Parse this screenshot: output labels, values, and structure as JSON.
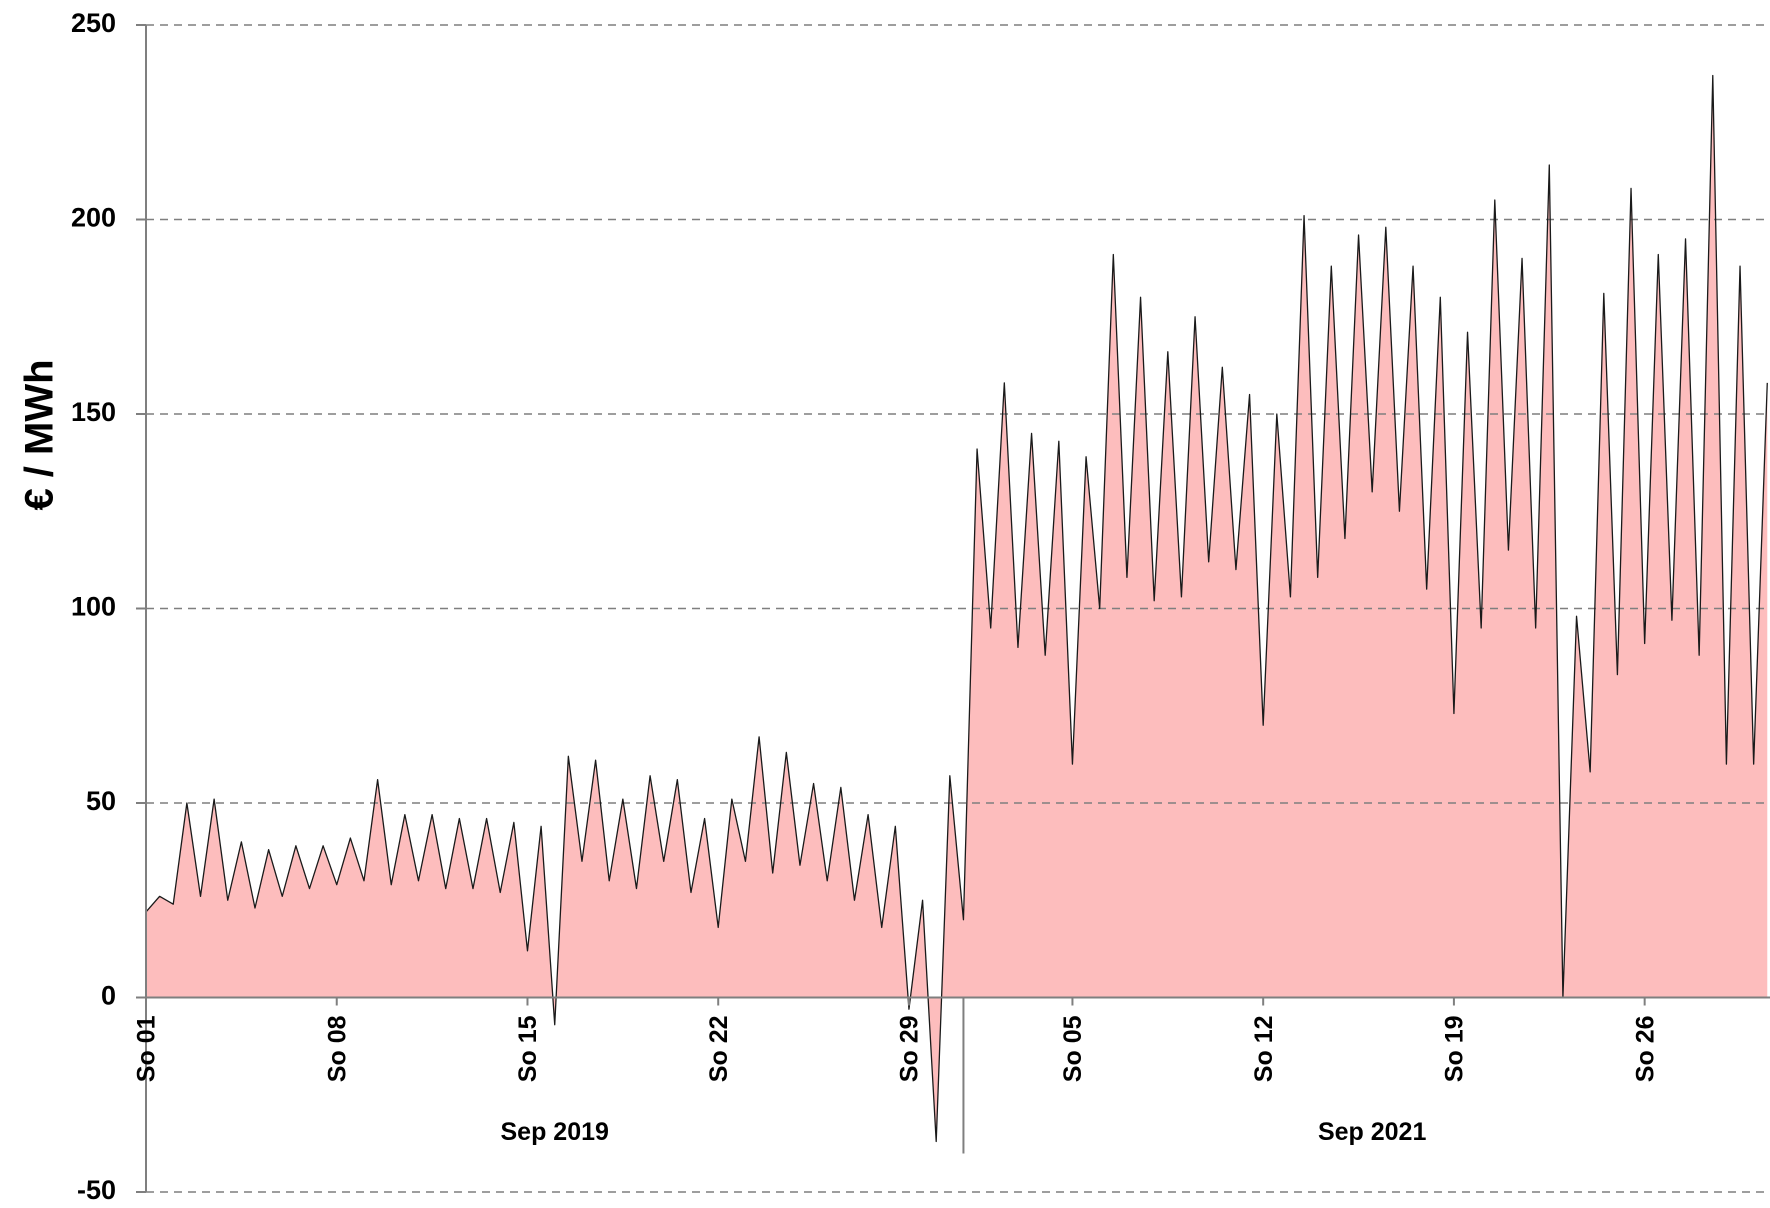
{
  "chart_data": {
    "type": "area",
    "y_label": "€ / MWh",
    "x": [
      0,
      0.5,
      1,
      1.5,
      2,
      2.5,
      3,
      3.5,
      4,
      4.5,
      5,
      5.5,
      6,
      6.5,
      7,
      7.5,
      8,
      8.5,
      9,
      9.5,
      10,
      10.5,
      11,
      11.5,
      12,
      12.5,
      13,
      13.5,
      14,
      14.5,
      15,
      15.5,
      16,
      16.5,
      17,
      17.5,
      18,
      18.5,
      19,
      19.5,
      20,
      20.5,
      21,
      21.5,
      22,
      22.5,
      23,
      23.5,
      24,
      24.5,
      25,
      25.5,
      26,
      26.5,
      27,
      27.5,
      28,
      28.5,
      29,
      29.5,
      30,
      30.5,
      31,
      31.5,
      32,
      32.5,
      33,
      33.5,
      34,
      34.5,
      35,
      35.5,
      36,
      36.5,
      37,
      37.5,
      38,
      38.5,
      39,
      39.5,
      40,
      40.5,
      41,
      41.5,
      42,
      42.5,
      43,
      43.5,
      44,
      44.5,
      45,
      45.5,
      46,
      46.5,
      47,
      47.5,
      48,
      48.5,
      49,
      49.5,
      50,
      50.5,
      51,
      51.5,
      52,
      52.5,
      53,
      53.5,
      54,
      54.5,
      55,
      55.5,
      56,
      56.5,
      57,
      57.5,
      58,
      58.5,
      59,
      59.5
    ],
    "series": [
      {
        "color": "#fdbdbd",
        "line_color": "#1a1a1a",
        "values": [
          22,
          26,
          24,
          50,
          26,
          51,
          25,
          40,
          23,
          38,
          26,
          39,
          28,
          39,
          29,
          41,
          30,
          56,
          29,
          47,
          30,
          47,
          28,
          46,
          28,
          46,
          27,
          45,
          12,
          44,
          -7,
          62,
          35,
          61,
          30,
          51,
          28,
          57,
          35,
          56,
          27,
          46,
          18,
          51,
          35,
          67,
          32,
          63,
          34,
          55,
          30,
          54,
          25,
          47,
          18,
          44,
          -3,
          25,
          -37,
          57,
          20,
          141,
          95,
          158,
          90,
          145,
          88,
          143,
          60,
          139,
          100,
          191,
          108,
          180,
          102,
          166,
          103,
          175,
          112,
          162,
          110,
          155,
          70,
          150,
          103,
          201,
          108,
          188,
          118,
          196,
          130,
          198,
          125,
          188,
          105,
          180,
          73,
          171,
          95,
          205,
          115,
          190,
          95,
          214,
          0,
          98,
          58,
          181,
          83,
          208,
          91,
          191,
          97,
          195,
          88,
          237,
          60,
          188,
          60,
          158
        ]
      }
    ],
    "xlim": [
      0,
      59.6
    ],
    "xticks": [
      {
        "value": 0,
        "label": "So 01"
      },
      {
        "value": 7,
        "label": "So 08"
      },
      {
        "value": 14,
        "label": "So 15"
      },
      {
        "value": 21,
        "label": "So 22"
      },
      {
        "value": 28,
        "label": "So 29"
      },
      {
        "value": 34,
        "label": "So 05"
      },
      {
        "value": 41,
        "label": "So 12"
      },
      {
        "value": 48,
        "label": "So 19"
      },
      {
        "value": 55,
        "label": "So 26"
      }
    ],
    "x_groups": [
      {
        "label": "Sep 2019",
        "from": 0,
        "to": 30
      },
      {
        "label": "Sep 2021",
        "from": 30,
        "to": 60
      }
    ],
    "ylim": [
      -50,
      250
    ],
    "yticks": [
      -50,
      0,
      50,
      100,
      150,
      200,
      250
    ],
    "grid": true
  }
}
